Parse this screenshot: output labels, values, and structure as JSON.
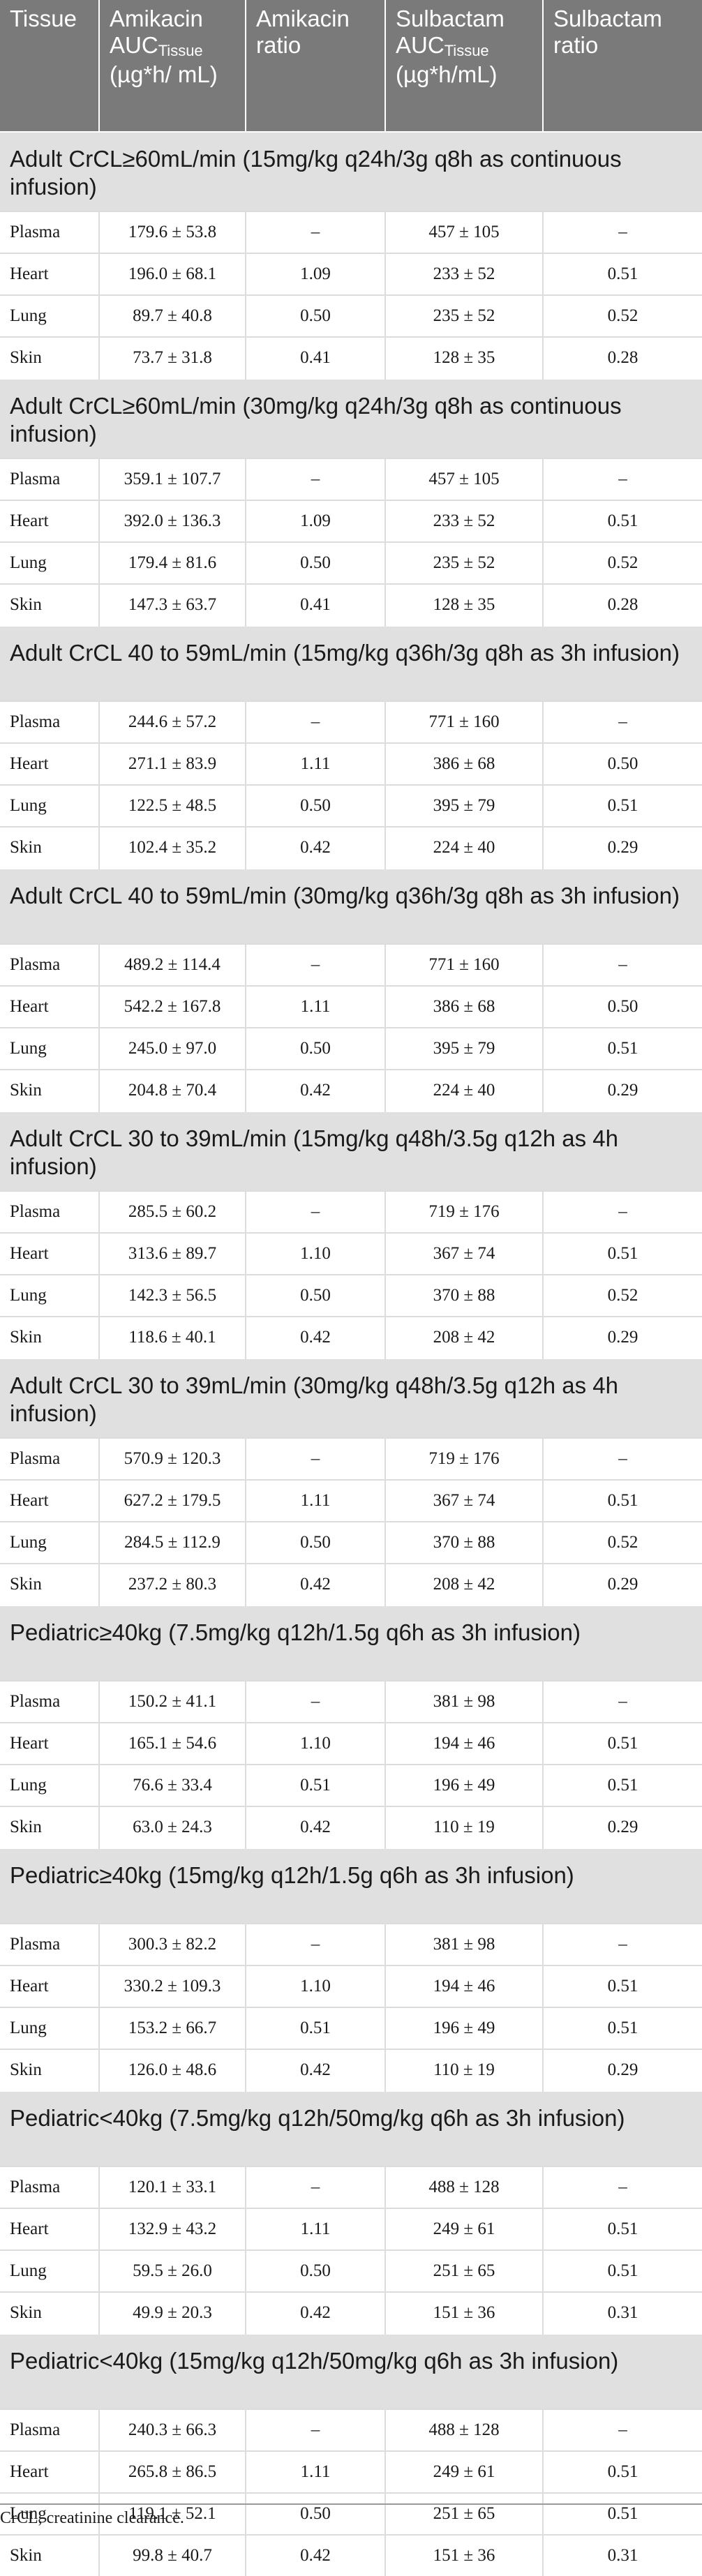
{
  "header": {
    "tissue": "Tissue",
    "amikacin_auc_main": "Amikacin AUC",
    "amikacin_auc_sub": "Tissue",
    "amikacin_auc_unit": "(µg*h/ mL)",
    "amikacin_ratio": "Amikacin ratio",
    "sulbactam_auc_main": "Sulbactam AUC",
    "sulbactam_auc_sub": "Tissue",
    "sulbactam_auc_unit": "(µg*h/mL)",
    "sulbactam_ratio": "Sulbactam ratio"
  },
  "sections": [
    {
      "title": "Adult CrCL≥60mL/min (15mg/kg q24h/3g q8h as continuous infusion)",
      "rows": [
        {
          "tissue": "Plasma",
          "amikacin_auc": "179.6 ± 53.8",
          "amikacin_ratio": "–",
          "sulbactam_auc": "457 ± 105",
          "sulbactam_ratio": "–"
        },
        {
          "tissue": "Heart",
          "amikacin_auc": "196.0 ± 68.1",
          "amikacin_ratio": "1.09",
          "sulbactam_auc": "233 ± 52",
          "sulbactam_ratio": "0.51"
        },
        {
          "tissue": "Lung",
          "amikacin_auc": "89.7 ± 40.8",
          "amikacin_ratio": "0.50",
          "sulbactam_auc": "235 ± 52",
          "sulbactam_ratio": "0.52"
        },
        {
          "tissue": "Skin",
          "amikacin_auc": "73.7 ± 31.8",
          "amikacin_ratio": "0.41",
          "sulbactam_auc": "128 ± 35",
          "sulbactam_ratio": "0.28"
        }
      ]
    },
    {
      "title": "Adult CrCL≥60mL/min (30mg/kg q24h/3g q8h as continuous infusion)",
      "rows": [
        {
          "tissue": "Plasma",
          "amikacin_auc": "359.1 ± 107.7",
          "amikacin_ratio": "–",
          "sulbactam_auc": "457 ± 105",
          "sulbactam_ratio": "–"
        },
        {
          "tissue": "Heart",
          "amikacin_auc": "392.0 ± 136.3",
          "amikacin_ratio": "1.09",
          "sulbactam_auc": "233 ± 52",
          "sulbactam_ratio": "0.51"
        },
        {
          "tissue": "Lung",
          "amikacin_auc": "179.4 ± 81.6",
          "amikacin_ratio": "0.50",
          "sulbactam_auc": "235 ± 52",
          "sulbactam_ratio": "0.52"
        },
        {
          "tissue": "Skin",
          "amikacin_auc": "147.3 ± 63.7",
          "amikacin_ratio": "0.41",
          "sulbactam_auc": "128 ± 35",
          "sulbactam_ratio": "0.28"
        }
      ]
    },
    {
      "title": "Adult CrCL 40 to 59mL/min (15mg/kg q36h/3g q8h as 3h infusion)",
      "rows": [
        {
          "tissue": "Plasma",
          "amikacin_auc": "244.6 ± 57.2",
          "amikacin_ratio": "–",
          "sulbactam_auc": "771 ± 160",
          "sulbactam_ratio": "–"
        },
        {
          "tissue": "Heart",
          "amikacin_auc": "271.1 ± 83.9",
          "amikacin_ratio": "1.11",
          "sulbactam_auc": "386 ± 68",
          "sulbactam_ratio": "0.50"
        },
        {
          "tissue": "Lung",
          "amikacin_auc": "122.5 ± 48.5",
          "amikacin_ratio": "0.50",
          "sulbactam_auc": "395 ± 79",
          "sulbactam_ratio": "0.51"
        },
        {
          "tissue": "Skin",
          "amikacin_auc": "102.4 ± 35.2",
          "amikacin_ratio": "0.42",
          "sulbactam_auc": "224 ± 40",
          "sulbactam_ratio": "0.29"
        }
      ]
    },
    {
      "title": "Adult CrCL 40 to 59mL/min (30mg/kg q36h/3g q8h as 3h infusion)",
      "rows": [
        {
          "tissue": "Plasma",
          "amikacin_auc": "489.2 ± 114.4",
          "amikacin_ratio": "–",
          "sulbactam_auc": "771 ± 160",
          "sulbactam_ratio": "–"
        },
        {
          "tissue": "Heart",
          "amikacin_auc": "542.2 ± 167.8",
          "amikacin_ratio": "1.11",
          "sulbactam_auc": "386 ± 68",
          "sulbactam_ratio": "0.50"
        },
        {
          "tissue": "Lung",
          "amikacin_auc": "245.0 ± 97.0",
          "amikacin_ratio": "0.50",
          "sulbactam_auc": "395 ± 79",
          "sulbactam_ratio": "0.51"
        },
        {
          "tissue": "Skin",
          "amikacin_auc": "204.8 ± 70.4",
          "amikacin_ratio": "0.42",
          "sulbactam_auc": "224 ± 40",
          "sulbactam_ratio": "0.29"
        }
      ]
    },
    {
      "title": "Adult CrCL 30 to 39mL/min (15mg/kg q48h/3.5g q12h as 4h infusion)",
      "rows": [
        {
          "tissue": "Plasma",
          "amikacin_auc": "285.5 ± 60.2",
          "amikacin_ratio": "–",
          "sulbactam_auc": "719 ± 176",
          "sulbactam_ratio": "–"
        },
        {
          "tissue": "Heart",
          "amikacin_auc": "313.6 ± 89.7",
          "amikacin_ratio": "1.10",
          "sulbactam_auc": "367 ± 74",
          "sulbactam_ratio": "0.51"
        },
        {
          "tissue": "Lung",
          "amikacin_auc": "142.3 ± 56.5",
          "amikacin_ratio": "0.50",
          "sulbactam_auc": "370 ± 88",
          "sulbactam_ratio": "0.52"
        },
        {
          "tissue": "Skin",
          "amikacin_auc": "118.6 ± 40.1",
          "amikacin_ratio": "0.42",
          "sulbactam_auc": "208 ± 42",
          "sulbactam_ratio": "0.29"
        }
      ]
    },
    {
      "title": "Adult CrCL 30 to 39mL/min (30mg/kg q48h/3.5g q12h as 4h infusion)",
      "rows": [
        {
          "tissue": "Plasma",
          "amikacin_auc": "570.9 ± 120.3",
          "amikacin_ratio": "–",
          "sulbactam_auc": "719 ± 176",
          "sulbactam_ratio": "–"
        },
        {
          "tissue": "Heart",
          "amikacin_auc": "627.2 ± 179.5",
          "amikacin_ratio": "1.11",
          "sulbactam_auc": "367 ± 74",
          "sulbactam_ratio": "0.51"
        },
        {
          "tissue": "Lung",
          "amikacin_auc": "284.5 ± 112.9",
          "amikacin_ratio": "0.50",
          "sulbactam_auc": "370 ± 88",
          "sulbactam_ratio": "0.52"
        },
        {
          "tissue": "Skin",
          "amikacin_auc": "237.2 ± 80.3",
          "amikacin_ratio": "0.42",
          "sulbactam_auc": "208 ± 42",
          "sulbactam_ratio": "0.29"
        }
      ]
    },
    {
      "title": "Pediatric≥40kg (7.5mg/kg q12h/1.5g q6h as 3h infusion)",
      "rows": [
        {
          "tissue": "Plasma",
          "amikacin_auc": "150.2 ± 41.1",
          "amikacin_ratio": "–",
          "sulbactam_auc": "381 ± 98",
          "sulbactam_ratio": "–"
        },
        {
          "tissue": "Heart",
          "amikacin_auc": "165.1 ± 54.6",
          "amikacin_ratio": "1.10",
          "sulbactam_auc": "194 ± 46",
          "sulbactam_ratio": "0.51"
        },
        {
          "tissue": "Lung",
          "amikacin_auc": "76.6 ± 33.4",
          "amikacin_ratio": "0.51",
          "sulbactam_auc": "196 ± 49",
          "sulbactam_ratio": "0.51"
        },
        {
          "tissue": "Skin",
          "amikacin_auc": "63.0 ± 24.3",
          "amikacin_ratio": "0.42",
          "sulbactam_auc": "110 ± 19",
          "sulbactam_ratio": "0.29"
        }
      ]
    },
    {
      "title": "Pediatric≥40kg (15mg/kg q12h/1.5g q6h as 3h infusion)",
      "rows": [
        {
          "tissue": "Plasma",
          "amikacin_auc": "300.3 ± 82.2",
          "amikacin_ratio": "–",
          "sulbactam_auc": "381 ± 98",
          "sulbactam_ratio": "–"
        },
        {
          "tissue": "Heart",
          "amikacin_auc": "330.2 ± 109.3",
          "amikacin_ratio": "1.10",
          "sulbactam_auc": "194 ± 46",
          "sulbactam_ratio": "0.51"
        },
        {
          "tissue": "Lung",
          "amikacin_auc": "153.2 ± 66.7",
          "amikacin_ratio": "0.51",
          "sulbactam_auc": "196 ± 49",
          "sulbactam_ratio": "0.51"
        },
        {
          "tissue": "Skin",
          "amikacin_auc": "126.0 ± 48.6",
          "amikacin_ratio": "0.42",
          "sulbactam_auc": "110 ± 19",
          "sulbactam_ratio": "0.29"
        }
      ]
    },
    {
      "title": "Pediatric<40kg (7.5mg/kg q12h/50mg/kg q6h as 3h infusion)",
      "rows": [
        {
          "tissue": "Plasma",
          "amikacin_auc": "120.1 ± 33.1",
          "amikacin_ratio": "–",
          "sulbactam_auc": "488 ± 128",
          "sulbactam_ratio": "–"
        },
        {
          "tissue": "Heart",
          "amikacin_auc": "132.9 ± 43.2",
          "amikacin_ratio": "1.11",
          "sulbactam_auc": "249 ± 61",
          "sulbactam_ratio": "0.51"
        },
        {
          "tissue": "Lung",
          "amikacin_auc": "59.5 ± 26.0",
          "amikacin_ratio": "0.50",
          "sulbactam_auc": "251 ± 65",
          "sulbactam_ratio": "0.51"
        },
        {
          "tissue": "Skin",
          "amikacin_auc": "49.9 ± 20.3",
          "amikacin_ratio": "0.42",
          "sulbactam_auc": "151 ± 36",
          "sulbactam_ratio": "0.31"
        }
      ]
    },
    {
      "title": "Pediatric<40kg (15mg/kg q12h/50mg/kg q6h as 3h infusion)",
      "rows": [
        {
          "tissue": "Plasma",
          "amikacin_auc": "240.3 ± 66.3",
          "amikacin_ratio": "–",
          "sulbactam_auc": "488 ± 128",
          "sulbactam_ratio": "–"
        },
        {
          "tissue": "Heart",
          "amikacin_auc": "265.8 ± 86.5",
          "amikacin_ratio": "1.11",
          "sulbactam_auc": "249 ± 61",
          "sulbactam_ratio": "0.51"
        },
        {
          "tissue": "Lung",
          "amikacin_auc": "119.1 ± 52.1",
          "amikacin_ratio": "0.50",
          "sulbactam_auc": "251 ± 65",
          "sulbactam_ratio": "0.51"
        },
        {
          "tissue": "Skin",
          "amikacin_auc": "99.8 ± 40.7",
          "amikacin_ratio": "0.42",
          "sulbactam_auc": "151 ± 36",
          "sulbactam_ratio": "0.31"
        }
      ]
    }
  ],
  "footnote": "CrCL, creatinine clearance."
}
